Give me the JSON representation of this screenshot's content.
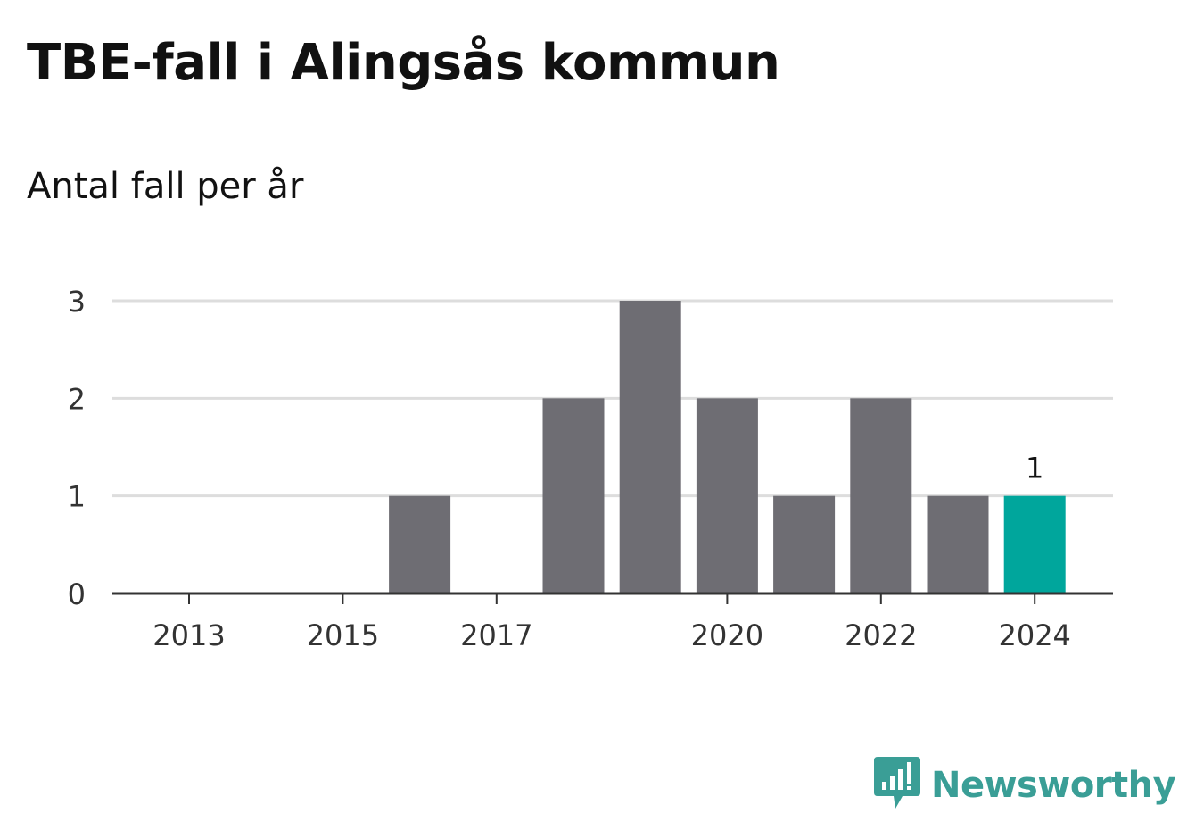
{
  "colors": {
    "bar": "#6e6d73",
    "highlight": "#00a69c",
    "grid": "#dddddd",
    "axis": "#333333",
    "brand": "#3a9e96"
  },
  "brand": {
    "name": "Newsworthy",
    "icon": "newsworthy-logo-icon"
  },
  "chart_data": {
    "type": "bar",
    "title": "TBE-fall i Alingsås kommun",
    "subtitle": "Antal fall per år",
    "xlabel": "",
    "ylabel": "",
    "categories": [
      "2013",
      "2014",
      "2015",
      "2016",
      "2017",
      "2018",
      "2019",
      "2020",
      "2021",
      "2022",
      "2023",
      "2024"
    ],
    "values": [
      0,
      0,
      0,
      1,
      0,
      2,
      3,
      2,
      1,
      2,
      1,
      1
    ],
    "highlight_index": 11,
    "highlight_label": "1",
    "x_tick_labels": [
      "2013",
      "2015",
      "2017",
      "2020",
      "2022",
      "2024"
    ],
    "y_ticks": [
      "0",
      "1",
      "2",
      "3"
    ],
    "ylim": [
      0,
      3
    ],
    "grid": true,
    "legend": "none"
  }
}
